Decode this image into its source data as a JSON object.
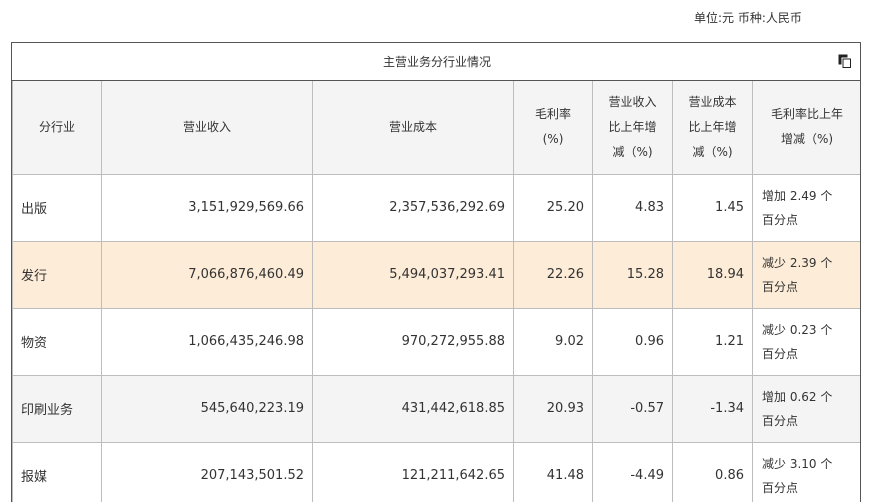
{
  "unit_text": "单位:元 币种:人民币",
  "table": {
    "title": "主营业务分行业情况",
    "copy_icon": "copy-icon",
    "headers": {
      "industry": "分行业",
      "revenue": "营业收入",
      "cost": "营业成本",
      "margin": [
        "毛利率",
        "(%)"
      ],
      "revenue_change": [
        "营业收入",
        "比上年增",
        "减（%)"
      ],
      "cost_change": [
        "营业成本",
        "比上年增",
        "减（%)"
      ],
      "margin_change": [
        "毛利率比上年",
        "增减（%)"
      ]
    },
    "rows": [
      {
        "industry": "出版",
        "revenue": "3,151,929,569.66",
        "cost": "2,357,536,292.69",
        "margin": "25.20",
        "revenue_change": "4.83",
        "cost_change": "1.45",
        "margin_change": [
          "增加 2.49 个",
          "百分点"
        ]
      },
      {
        "industry": "发行",
        "revenue": "7,066,876,460.49",
        "cost": "5,494,037,293.41",
        "margin": "22.26",
        "revenue_change": "15.28",
        "cost_change": "18.94",
        "margin_change": [
          "减少 2.39 个",
          "百分点"
        ]
      },
      {
        "industry": "物资",
        "revenue": "1,066,435,246.98",
        "cost": "970,272,955.88",
        "margin": "9.02",
        "revenue_change": "0.96",
        "cost_change": "1.21",
        "margin_change": [
          "减少 0.23 个",
          "百分点"
        ]
      },
      {
        "industry": "印刷业务",
        "revenue": "545,640,223.19",
        "cost": "431,442,618.85",
        "margin": "20.93",
        "revenue_change": "-0.57",
        "cost_change": "-1.34",
        "margin_change": [
          "增加 0.62 个",
          "百分点"
        ]
      },
      {
        "industry": "报媒",
        "revenue": "207,143,501.52",
        "cost": "121,211,642.65",
        "margin": "41.48",
        "revenue_change": "-4.49",
        "cost_change": "0.86",
        "margin_change": [
          "减少 3.10 个",
          "百分点"
        ]
      }
    ]
  }
}
